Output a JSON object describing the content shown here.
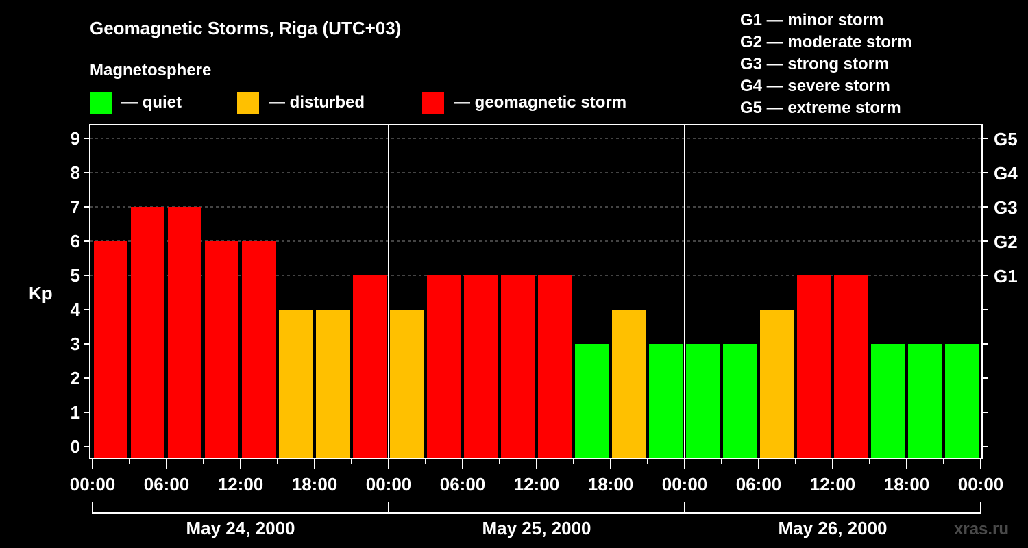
{
  "chart_data": {
    "type": "bar",
    "title": "Geomagnetic Storms, Riga (UTC+03)",
    "legend_title": "Magnetosphere",
    "legend": [
      {
        "label": "— quiet",
        "color": "#00ff00"
      },
      {
        "label": "— disturbed",
        "color": "#ffc000"
      },
      {
        "label": "— geomagnetic storm",
        "color": "#ff0000"
      }
    ],
    "scale_legend": [
      "G1 — minor storm",
      "G2 — moderate storm",
      "G3 — strong storm",
      "G4 — severe storm",
      "G5 — extreme storm"
    ],
    "ylabel": "Kp",
    "ylim": [
      0,
      9
    ],
    "yticks": [
      "0",
      "1",
      "2",
      "3",
      "4",
      "5",
      "6",
      "7",
      "8",
      "9"
    ],
    "right_ticks": [
      {
        "kp": 5,
        "label": "G1"
      },
      {
        "kp": 6,
        "label": "G2"
      },
      {
        "kp": 7,
        "label": "G3"
      },
      {
        "kp": 8,
        "label": "G4"
      },
      {
        "kp": 9,
        "label": "G5"
      }
    ],
    "xtick_labels": [
      "00:00",
      "06:00",
      "12:00",
      "18:00",
      "00:00",
      "06:00",
      "12:00",
      "18:00",
      "00:00",
      "06:00",
      "12:00",
      "18:00",
      "00:00"
    ],
    "days": [
      "May 24, 2000",
      "May 25, 2000",
      "May 26, 2000"
    ],
    "interval_hours": 3,
    "values": [
      6,
      7,
      7,
      6,
      6,
      4,
      4,
      5,
      4,
      5,
      5,
      5,
      5,
      3,
      4,
      3,
      3,
      3,
      4,
      5,
      5,
      3,
      3,
      3
    ],
    "thresholds": {
      "disturbed": 4,
      "storm": 5
    },
    "grid": "dashed at Kp 5-9"
  },
  "watermark": "xras.ru"
}
